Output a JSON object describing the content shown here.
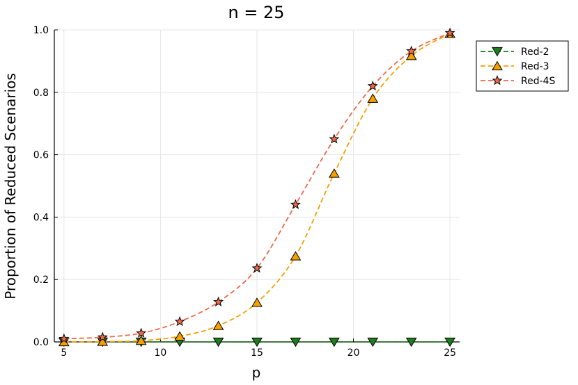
{
  "chart_data": {
    "type": "line",
    "title": "n = 25",
    "xlabel": "p",
    "ylabel": "Proportion of Reduced Scenarios",
    "xlim": [
      4.5,
      25.5
    ],
    "ylim": [
      0.0,
      1.0
    ],
    "x_ticks": [
      5,
      10,
      15,
      20,
      25
    ],
    "x_tick_labels": [
      "5",
      "10",
      "15",
      "20",
      "25"
    ],
    "y_ticks": [
      0.0,
      0.2,
      0.4,
      0.6,
      0.8,
      1.0
    ],
    "y_tick_labels": [
      "0.0",
      "0.2",
      "0.4",
      "0.6",
      "0.8",
      "1.0"
    ],
    "grid": true,
    "legend_position": "top-right",
    "x": [
      5,
      7,
      9,
      11,
      13,
      15,
      17,
      19,
      21,
      23,
      25
    ],
    "series": [
      {
        "name": "Red-2",
        "color": "#1a7f1a",
        "marker": "triangle-down",
        "values": [
          0.0,
          0.0,
          0.0,
          0.0,
          0.0,
          0.0,
          0.0,
          0.0,
          0.0,
          0.0,
          0.0
        ]
      },
      {
        "name": "Red-3",
        "color": "#f5a000",
        "marker": "triangle-up",
        "values": [
          0.0,
          0.001,
          0.004,
          0.018,
          0.052,
          0.126,
          0.275,
          0.54,
          0.78,
          0.917,
          0.988
        ]
      },
      {
        "name": "Red-4S",
        "color": "#ee6a4a",
        "marker": "star",
        "values": [
          0.01,
          0.015,
          0.028,
          0.065,
          0.128,
          0.236,
          0.44,
          0.65,
          0.82,
          0.932,
          0.99
        ]
      }
    ]
  }
}
